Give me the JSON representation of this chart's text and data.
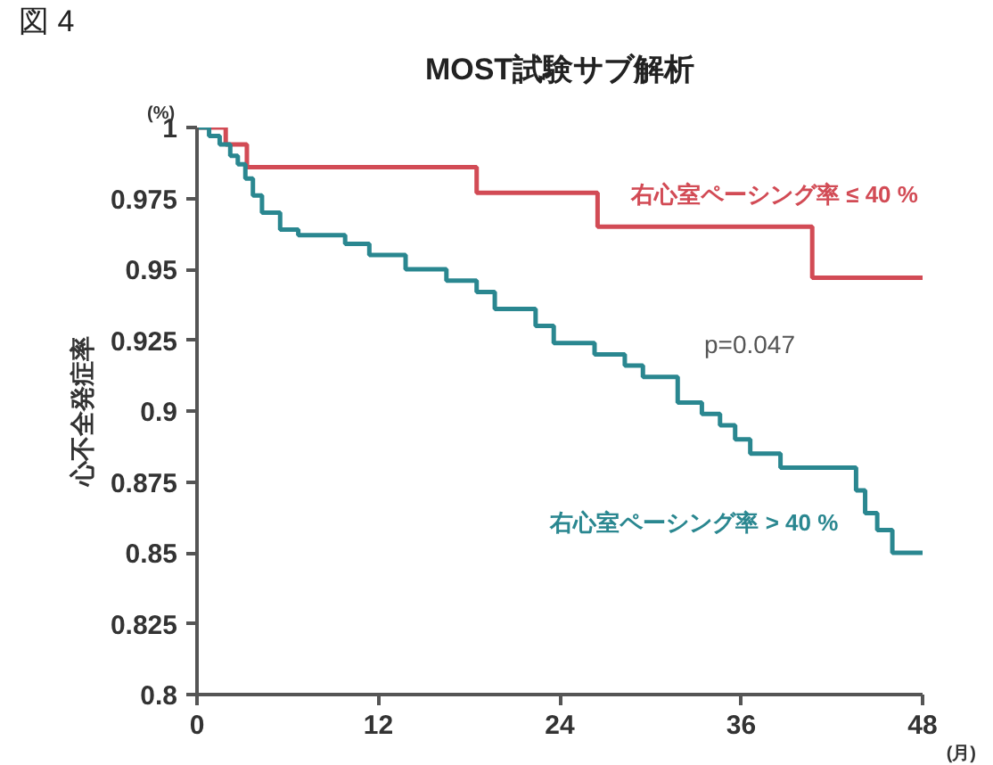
{
  "chart_data": {
    "type": "step",
    "title": "MOST試験サブ解析",
    "ylabel": "心不全発症率",
    "xlabel": "(月)",
    "annotations": [
      "図 4",
      "(%)",
      "p=0.047"
    ],
    "xlim": [
      0,
      48
    ],
    "xticks": [
      0,
      12,
      24,
      36,
      48
    ],
    "ylim": [
      0.8,
      1
    ],
    "yticks": [
      0.8,
      0.825,
      0.85,
      0.875,
      0.9,
      0.925,
      0.95,
      0.975,
      1
    ],
    "grid": false,
    "marker": "none",
    "line_style": "solid",
    "series": [
      {
        "name": "右心室ペーシング率 ≤ 40 %",
        "color": "#d24b55",
        "x": [
          0,
          1.9,
          3.3,
          18.5,
          26.5,
          40.7,
          48
        ],
        "values": [
          1,
          0.994,
          0.986,
          0.977,
          0.965,
          0.947,
          0.947
        ]
      },
      {
        "name": "右心室ペーシング率 > 40 %",
        "color": "#2a8790",
        "x": [
          0,
          0.8,
          1.5,
          2.2,
          2.7,
          3.2,
          3.7,
          4.3,
          5.5,
          6.7,
          9.8,
          11.4,
          13.8,
          16.5,
          18.5,
          19.7,
          22.4,
          23.6,
          26.3,
          28.3,
          29.5,
          31.8,
          33.4,
          34.6,
          35.6,
          36.6,
          38.6,
          43.6,
          44.2,
          45,
          46,
          48
        ],
        "values": [
          1,
          0.997,
          0.994,
          0.99,
          0.987,
          0.982,
          0.976,
          0.97,
          0.964,
          0.962,
          0.959,
          0.955,
          0.95,
          0.946,
          0.942,
          0.936,
          0.93,
          0.924,
          0.92,
          0.916,
          0.912,
          0.903,
          0.899,
          0.895,
          0.89,
          0.885,
          0.88,
          0.872,
          0.864,
          0.858,
          0.85,
          0.85
        ]
      }
    ]
  }
}
